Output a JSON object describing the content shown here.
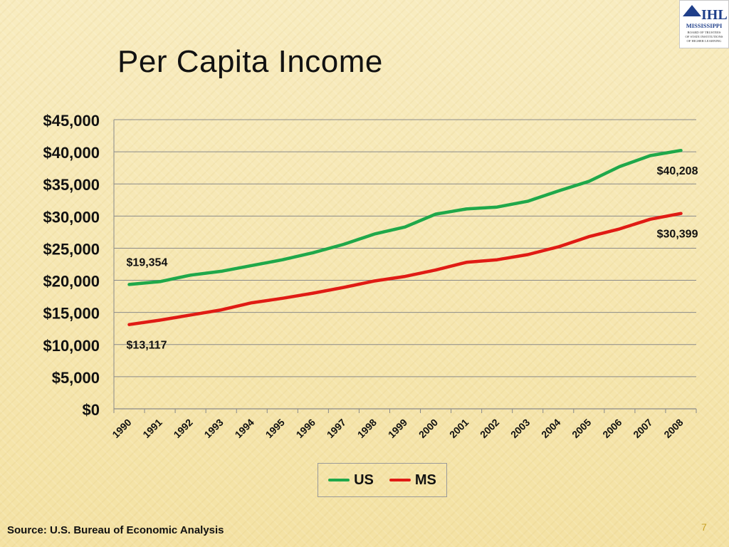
{
  "slide": {
    "title": "Per Capita Income",
    "source": "Source: U.S. Bureau of Economic Analysis",
    "page_number": "7"
  },
  "logo": {
    "text": "IHL",
    "line1": "MISSISSIPPI",
    "line2": "BOARD OF TRUSTEES",
    "line3": "OF STATE INSTITUTIONS",
    "line4": "OF HIGHER LEARNING"
  },
  "chart_data": {
    "type": "line",
    "title": "Per Capita Income",
    "xlabel": "",
    "ylabel": "",
    "x": [
      "1990",
      "1991",
      "1992",
      "1993",
      "1994",
      "1995",
      "1996",
      "1997",
      "1998",
      "1999",
      "2000",
      "2001",
      "2002",
      "2003",
      "2004",
      "2005",
      "2006",
      "2007",
      "2008"
    ],
    "ylim": [
      0,
      45000
    ],
    "ytick_values": [
      0,
      5000,
      10000,
      15000,
      20000,
      25000,
      30000,
      35000,
      40000,
      45000
    ],
    "ytick_labels": [
      "$0",
      "$5,000",
      "$10,000",
      "$15,000",
      "$20,000",
      "$25,000",
      "$30,000",
      "$35,000",
      "$40,000",
      "$45,000"
    ],
    "grid": true,
    "legend_position": "bottom",
    "series": [
      {
        "name": "US",
        "color": "#1fa84a",
        "values": [
          19354,
          19800,
          20800,
          21400,
          22300,
          23200,
          24300,
          25600,
          27200,
          28300,
          30300,
          31100,
          31400,
          32300,
          33900,
          35400,
          37700,
          39400,
          40208
        ],
        "annotations": [
          {
            "index": 0,
            "label": "$19,354",
            "placement": "above"
          },
          {
            "index": 18,
            "label": "$40,208",
            "placement": "below"
          }
        ]
      },
      {
        "name": "MS",
        "color": "#e01b14",
        "values": [
          13117,
          13800,
          14600,
          15400,
          16500,
          17200,
          18000,
          18900,
          19900,
          20600,
          21600,
          22800,
          23200,
          24000,
          25200,
          26800,
          28000,
          29500,
          30399
        ],
        "annotations": [
          {
            "index": 0,
            "label": "$13,117",
            "placement": "below"
          },
          {
            "index": 18,
            "label": "$30,399",
            "placement": "below"
          }
        ]
      }
    ]
  }
}
